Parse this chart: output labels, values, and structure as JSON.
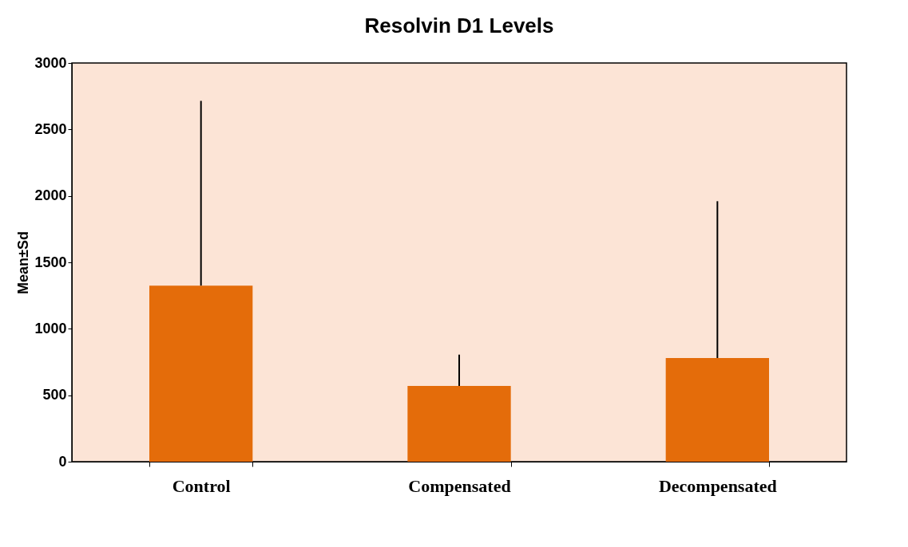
{
  "chart_data": {
    "type": "bar",
    "title": "Resolvin D1 Levels",
    "ylabel": "Mean±Sd",
    "categories": [
      "Control",
      "Compensated",
      "Decompensated"
    ],
    "values": [
      1325,
      570,
      780
    ],
    "errors": [
      [
        1325,
        2715
      ],
      [
        570,
        805
      ],
      [
        780,
        1960
      ]
    ],
    "color": "#e46c0a",
    "ylim": [
      0,
      3000
    ],
    "yticks": [
      0,
      500,
      1000,
      1500,
      2000,
      2500,
      3000
    ],
    "grid": false
  }
}
